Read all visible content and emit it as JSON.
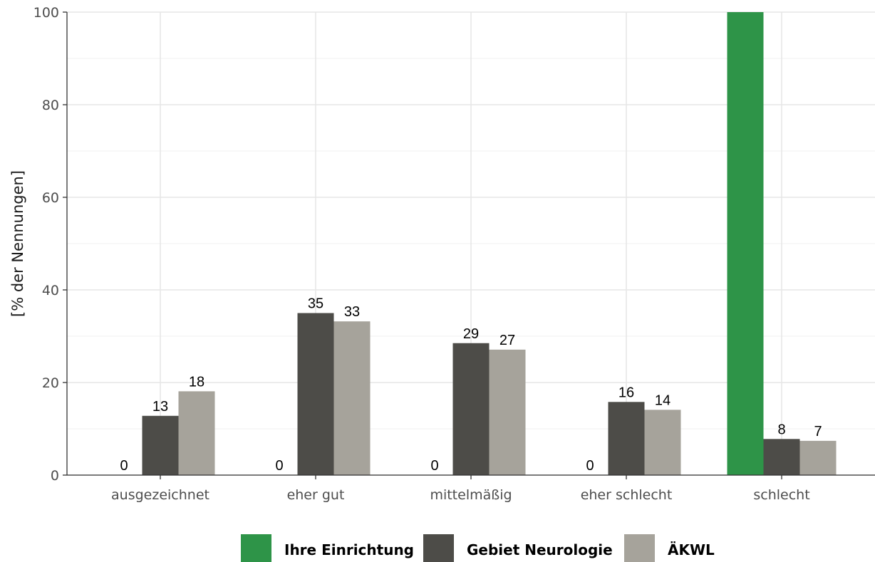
{
  "chart_data": {
    "type": "bar",
    "categories": [
      "ausgezeichnet",
      "eher gut",
      "mittelmäßig",
      "eher schlecht",
      "schlecht"
    ],
    "series": [
      {
        "name": "Ihre Einrichtung",
        "color": "#2e9448",
        "values": [
          0,
          0,
          0,
          0,
          100
        ],
        "labels": [
          "0",
          "0",
          "0",
          "0",
          ""
        ]
      },
      {
        "name": "Gebiet Neurologie",
        "color": "#4d4c48",
        "values": [
          12.8,
          35.0,
          28.5,
          15.8,
          7.8
        ],
        "labels": [
          "13",
          "35",
          "29",
          "16",
          "8"
        ]
      },
      {
        "name": "ÄKWL",
        "color": "#a6a39b",
        "values": [
          18.1,
          33.2,
          27.1,
          14.1,
          7.4
        ],
        "labels": [
          "18",
          "33",
          "27",
          "14",
          "7"
        ]
      }
    ],
    "ylabel": "[% der Nennungen]",
    "xlabel": "",
    "ylim": [
      0,
      100
    ],
    "yticks": [
      0,
      20,
      40,
      60,
      80,
      100
    ],
    "grid": true,
    "legend_position": "bottom"
  }
}
